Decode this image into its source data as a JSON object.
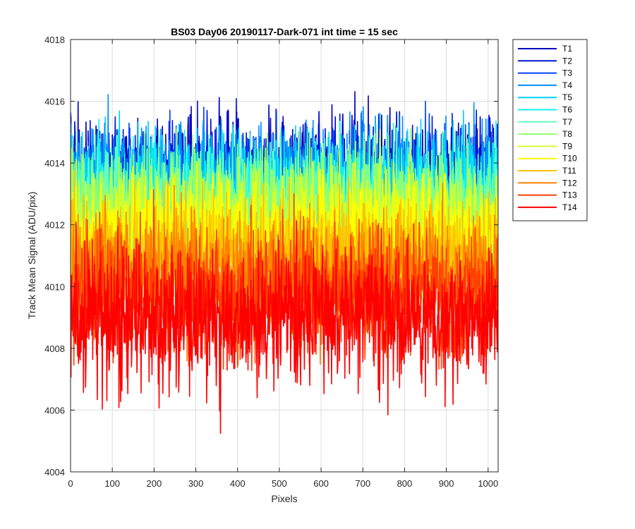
{
  "chart_data": {
    "type": "line",
    "title": "BS03 Day06 20190117-Dark-071 int time = 15 sec",
    "xlabel": "Pixels",
    "ylabel": "Track Mean Signal (ADU/pix)",
    "xlim": [
      0,
      1024
    ],
    "ylim": [
      4004,
      4018
    ],
    "x_ticks": [
      0,
      100,
      200,
      300,
      400,
      500,
      600,
      700,
      800,
      900,
      1000
    ],
    "y_ticks": [
      4004,
      4006,
      4008,
      4010,
      4012,
      4014,
      4016,
      4018
    ],
    "grid": true,
    "legend_position": "outside-top-right",
    "n_points": 1024,
    "series": [
      {
        "name": "T1",
        "color": "#0000bf",
        "mean": 4013.4,
        "noise_sd": 1.0
      },
      {
        "name": "T2",
        "color": "#0014d6",
        "mean": 4013.2,
        "noise_sd": 1.0
      },
      {
        "name": "T3",
        "color": "#0040ff",
        "mean": 4013.0,
        "noise_sd": 1.0
      },
      {
        "name": "T4",
        "color": "#0090ff",
        "mean": 4013.2,
        "noise_sd": 1.0
      },
      {
        "name": "T5",
        "color": "#00d0ff",
        "mean": 4013.0,
        "noise_sd": 1.0
      },
      {
        "name": "T6",
        "color": "#10f0f0",
        "mean": 4012.8,
        "noise_sd": 1.0
      },
      {
        "name": "T7",
        "color": "#60ffc0",
        "mean": 4012.6,
        "noise_sd": 1.0
      },
      {
        "name": "T8",
        "color": "#90ff70",
        "mean": 4012.4,
        "noise_sd": 1.0
      },
      {
        "name": "T9",
        "color": "#d0ff30",
        "mean": 4012.0,
        "noise_sd": 1.0
      },
      {
        "name": "T10",
        "color": "#ffff00",
        "mean": 4011.6,
        "noise_sd": 1.0
      },
      {
        "name": "T11",
        "color": "#ffc000",
        "mean": 4011.0,
        "noise_sd": 1.0
      },
      {
        "name": "T12",
        "color": "#ff8000",
        "mean": 4010.4,
        "noise_sd": 1.0
      },
      {
        "name": "T13",
        "color": "#ff4000",
        "mean": 4009.8,
        "noise_sd": 1.05
      },
      {
        "name": "T14",
        "color": "#ff0000",
        "mean": 4009.0,
        "noise_sd": 1.1
      }
    ]
  }
}
